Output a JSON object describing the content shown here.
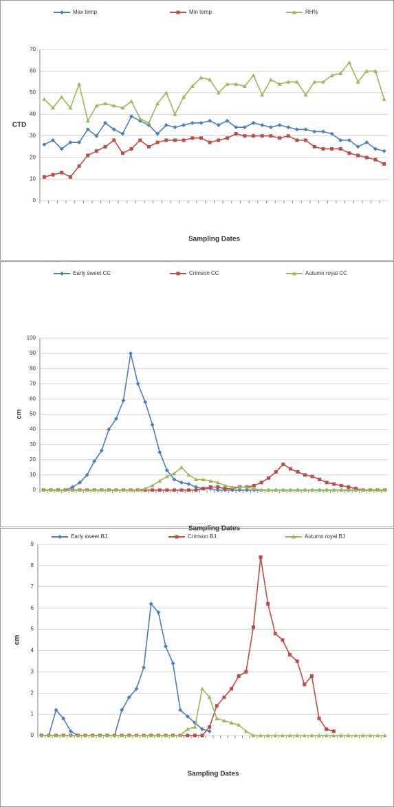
{
  "chart_data": [
    {
      "type": "line",
      "y_label": "CTD",
      "x_label": "Sampling Dates",
      "categories": [
        null,
        null,
        null,
        null,
        null,
        null,
        null,
        null,
        null,
        null,
        null,
        null,
        null,
        null,
        null,
        null,
        null,
        null,
        null,
        null,
        null,
        null,
        null,
        null,
        null,
        null,
        null,
        null,
        null,
        null,
        null,
        null,
        null,
        null,
        null,
        null,
        null,
        null,
        null,
        null
      ],
      "ylim": [
        0,
        70
      ],
      "yticks": [
        0,
        10,
        20,
        30,
        40,
        50,
        60,
        70
      ],
      "grid": true,
      "series": [
        {
          "name": "Max temp",
          "color": "#4a7ebb",
          "marker": "diamond",
          "values": [
            26,
            28,
            24,
            27,
            27,
            33,
            30,
            36,
            33,
            31,
            39,
            37,
            35,
            31,
            35,
            34,
            35,
            36,
            36,
            37,
            35,
            37,
            34,
            34,
            36,
            35,
            34,
            35,
            34,
            33,
            33,
            32,
            32,
            31,
            28,
            28,
            25,
            27,
            24,
            23
          ]
        },
        {
          "name": "Min temp",
          "color": "#be4b48",
          "marker": "square",
          "values": [
            11,
            12,
            13,
            11,
            16,
            21,
            23,
            25,
            28,
            22,
            24,
            28,
            25,
            27,
            28,
            28,
            28,
            29,
            29,
            27,
            28,
            29,
            31,
            30,
            30,
            30,
            30,
            29,
            30,
            28,
            28,
            25,
            24,
            24,
            24,
            22,
            21,
            20,
            19,
            17
          ]
        },
        {
          "name": "RH%",
          "color": "#98b954",
          "marker": "triangle",
          "values": [
            47,
            43,
            48,
            43,
            54,
            37,
            44,
            45,
            44,
            43,
            46,
            38,
            36,
            45,
            50,
            40,
            48,
            53,
            57,
            56,
            50,
            54,
            54,
            53,
            58,
            49,
            56,
            54,
            55,
            55,
            49,
            55,
            55,
            58,
            59,
            64,
            55,
            60,
            60,
            47
          ]
        }
      ]
    },
    {
      "type": "line",
      "y_label": "cm",
      "x_label": "Sampling Dates",
      "categories": [
        null,
        null,
        null,
        null,
        null,
        null,
        null,
        null,
        null,
        null,
        null,
        null,
        null,
        null,
        null,
        null,
        null,
        null,
        null,
        null,
        null,
        null,
        null,
        null,
        null,
        null,
        null,
        null,
        null,
        null,
        null,
        null,
        null,
        null,
        null,
        null,
        null,
        null,
        null,
        null,
        null,
        null,
        null,
        null,
        null,
        null,
        null,
        null
      ],
      "ylim": [
        0,
        100
      ],
      "yticks": [
        0,
        10,
        20,
        30,
        40,
        50,
        60,
        70,
        80,
        90,
        100
      ],
      "grid": true,
      "series": [
        {
          "name": "Early sweet CC",
          "color": "#4a7ebb",
          "marker": "diamond",
          "values": [
            0,
            0,
            0,
            0,
            2,
            5,
            10,
            19,
            26,
            40,
            47,
            59,
            90,
            70,
            58,
            43,
            25,
            13,
            7,
            5,
            4,
            2,
            1,
            1,
            0,
            0,
            0,
            0,
            0,
            0,
            0,
            0,
            0,
            0,
            0,
            0,
            0,
            0,
            0,
            0,
            0,
            0,
            0,
            0,
            0,
            0,
            0,
            0
          ]
        },
        {
          "name": "Crimson CC",
          "color": "#be4b48",
          "marker": "square",
          "values": [
            0,
            0,
            0,
            0,
            0,
            0,
            0,
            0,
            0,
            0,
            0,
            0,
            0,
            0,
            0,
            0,
            0,
            0,
            0,
            0,
            0,
            0,
            1,
            2,
            2,
            1,
            1,
            2,
            2,
            3,
            5,
            8,
            12,
            17,
            14,
            12,
            10,
            9,
            7,
            5,
            4,
            3,
            2,
            1,
            0,
            0,
            0,
            0
          ]
        },
        {
          "name": "Autumn royal CC",
          "color": "#98b954",
          "marker": "triangle",
          "values": [
            0,
            0,
            0,
            0,
            0,
            0,
            0,
            0,
            0,
            0,
            0,
            0,
            0,
            0,
            1,
            3,
            6,
            9,
            11,
            15,
            10,
            7,
            7,
            6,
            5,
            3,
            2,
            2,
            2,
            1,
            0,
            0,
            0,
            0,
            0,
            0,
            0,
            0,
            0,
            0,
            0,
            0,
            0,
            0,
            0,
            0,
            0,
            0
          ]
        }
      ]
    },
    {
      "type": "line",
      "y_label": "cm",
      "x_label": "Sampling Dates",
      "categories": [
        null,
        null,
        null,
        null,
        null,
        null,
        null,
        null,
        null,
        null,
        null,
        null,
        null,
        null,
        null,
        null,
        null,
        null,
        null,
        null,
        null,
        null,
        null,
        null,
        null,
        null,
        null,
        null,
        null,
        null,
        null,
        null,
        null,
        null,
        null,
        null,
        null,
        null,
        null,
        null,
        null,
        null,
        null,
        null,
        null,
        null,
        null,
        null
      ],
      "ylim": [
        0,
        9
      ],
      "yticks": [
        0,
        1,
        2,
        3,
        4,
        5,
        6,
        7,
        8,
        9
      ],
      "grid": true,
      "series": [
        {
          "name": "Early sweet BJ",
          "color": "#4a7ebb",
          "marker": "diamond",
          "values": [
            0,
            0,
            1.2,
            0.8,
            0.2,
            0,
            0,
            0,
            0,
            0,
            0,
            1.2,
            1.8,
            2.2,
            3.2,
            6.2,
            5.8,
            4.2,
            3.4,
            1.2,
            0.9,
            0.6,
            0.3,
            0.2,
            null,
            null,
            null,
            null,
            null,
            null,
            null,
            null,
            null,
            null,
            null,
            null,
            null,
            null,
            null,
            null,
            null,
            null,
            null,
            null,
            null,
            null,
            null,
            null
          ]
        },
        {
          "name": "Crimson BJ",
          "color": "#be4b48",
          "marker": "square",
          "values": [
            0,
            0,
            0,
            0,
            0,
            0,
            0,
            0,
            0,
            0,
            0,
            0,
            0,
            0,
            0,
            0,
            0,
            0,
            0,
            0,
            0,
            0,
            0,
            0.4,
            1.4,
            1.8,
            2.2,
            2.8,
            3.0,
            5.1,
            8.4,
            6.2,
            4.8,
            4.5,
            3.8,
            3.5,
            2.4,
            2.8,
            0.8,
            0.3,
            0.2,
            null,
            null,
            null,
            null,
            null,
            null,
            null
          ]
        },
        {
          "name": "Autumn royal BJ",
          "color": "#98b954",
          "marker": "triangle",
          "values": [
            0,
            0,
            0,
            0,
            0,
            0,
            0,
            0,
            0,
            0,
            0,
            0,
            0,
            0,
            0,
            0,
            0,
            0,
            0,
            0,
            0.3,
            0.4,
            2.2,
            1.8,
            0.8,
            0.7,
            0.6,
            0.5,
            0.2,
            0,
            0,
            0,
            0,
            0,
            0,
            0,
            0,
            0,
            0,
            0,
            0,
            0,
            0,
            0,
            0,
            0,
            0,
            0
          ]
        }
      ]
    }
  ]
}
